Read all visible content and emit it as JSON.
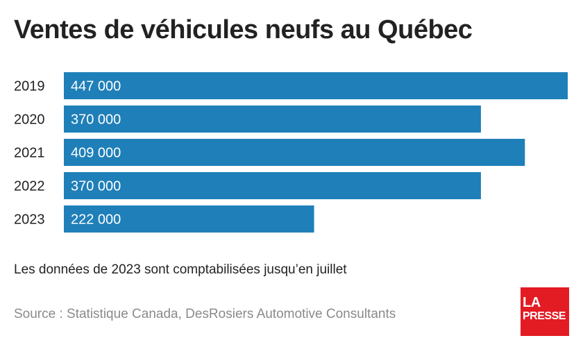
{
  "chart_data": {
    "type": "bar",
    "orientation": "horizontal",
    "title": "Ventes de véhicules neufs au Québec",
    "categories": [
      "2019",
      "2020",
      "2021",
      "2022",
      "2023"
    ],
    "values": [
      447000,
      370000,
      409000,
      370000,
      222000
    ],
    "value_labels": [
      "447 000",
      "370 000",
      "409 000",
      "370 000",
      "222 000"
    ],
    "xlim": [
      0,
      447000
    ],
    "grid": false,
    "legend": "none",
    "bar_color": "#1f7fb8",
    "label_color": "#ffffff"
  },
  "footnote": "Les données de 2023 sont comptabilisées jusqu’en juillet",
  "source": "Source : Statistique Canada, DesRosiers Automotive Consultants",
  "logo": {
    "line1": "LA",
    "line2": "PRESSE",
    "color": "#e31b23"
  }
}
